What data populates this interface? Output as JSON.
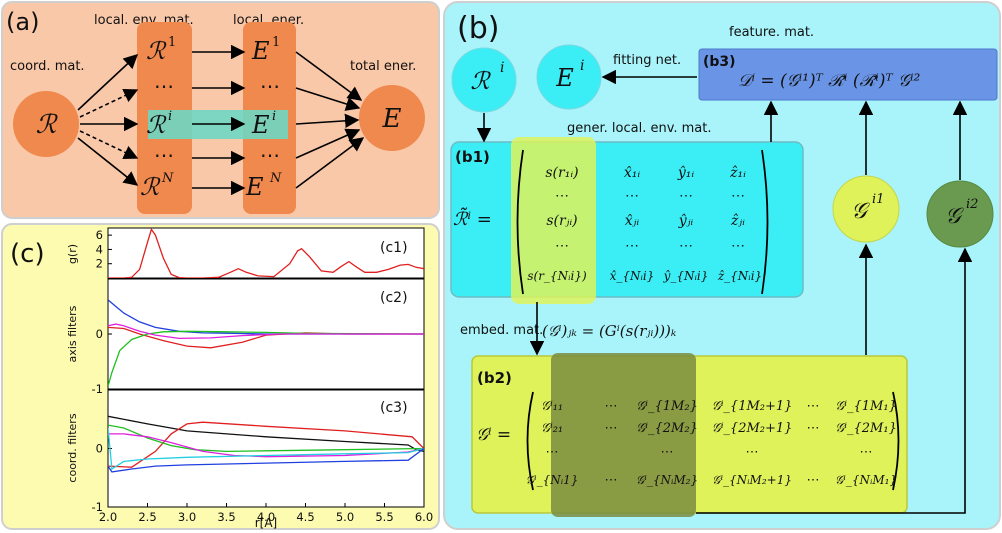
{
  "panel_a": {
    "label": "(a)",
    "col_local_env": "local. env. mat.",
    "col_local_ener": "local. ener.",
    "coord_mat": "coord. mat.",
    "total_ener": "total ener.",
    "node_R": "ℛ",
    "node_E": "E",
    "env_items": [
      "ℛ",
      "⋯",
      "ℛ",
      "⋯",
      "ℛ"
    ],
    "env_sups": [
      "1",
      "",
      "i",
      "",
      "N"
    ],
    "ener_items": [
      "E",
      "⋯",
      "E",
      "⋯",
      "E"
    ],
    "ener_sups": [
      "1",
      "",
      "i",
      "",
      "N"
    ],
    "colors": {
      "bg": "#f9c8a8",
      "node": "#f0894e",
      "highlight": "#6fd7c3"
    }
  },
  "panel_b": {
    "label": "(b)",
    "feature_mat": "feature. mat.",
    "fitting_net": "fitting net.",
    "gener_env": "gener. local. env. mat.",
    "embed_mat": "embed. mat.",
    "embed_eq": "(𝒢ⁱ)ⱼₖ = (Gⁱ(s(rⱼᵢ)))ₖ",
    "b1": "(b1)",
    "b2": "(b2)",
    "b3": "(b3)",
    "b3_eq": "𝒟ⁱ = (𝒢ⁱ¹)ᵀ ℛ̃ⁱ (ℛ̃ⁱ)ᵀ 𝒢ⁱ²",
    "node_R": "ℛ",
    "node_E": "E",
    "node_G1": "𝒢",
    "node_G2": "𝒢",
    "b1_lhs": "ℛ̃ⁱ =",
    "b2_lhs": "𝒢ⁱ =",
    "b1_matrix": [
      [
        "s(r₁ᵢ)",
        "x̂₁ᵢ",
        "ŷ₁ᵢ",
        "ẑ₁ᵢ"
      ],
      [
        "⋯",
        "⋯",
        "⋯",
        "⋯"
      ],
      [
        "s(rⱼᵢ)",
        "x̂ⱼᵢ",
        "ŷⱼᵢ",
        "ẑⱼᵢ"
      ],
      [
        "⋯",
        "⋯",
        "⋯",
        "⋯"
      ],
      [
        "s(r_{Nᵢi})",
        "x̂_{Nᵢi}",
        "ŷ_{Nᵢi}",
        "ẑ_{Nᵢi}"
      ]
    ],
    "b2_matrix": [
      [
        "𝒢ⁱ₁₁",
        "⋯",
        "𝒢ⁱ_{1M₂}",
        "𝒢ⁱ_{1M₂+1}",
        "⋯",
        "𝒢ⁱ_{1M₁}"
      ],
      [
        "𝒢ⁱ₂₁",
        "⋯",
        "𝒢ⁱ_{2M₂}",
        "𝒢ⁱ_{2M₂+1}",
        "⋯",
        "𝒢ⁱ_{2M₁}"
      ],
      [
        "⋯",
        "",
        "⋯",
        "⋯",
        "",
        "⋯"
      ],
      [
        "𝒢ⁱ_{Nᵢ1}",
        "⋯",
        "𝒢ⁱ_{NᵢM₂}",
        "𝒢ⁱ_{NᵢM₂+1}",
        "⋯",
        "𝒢ⁱ_{NᵢM₁}"
      ]
    ],
    "colors": {
      "bg": "#a8f4fa",
      "cyan": "#3bedf5",
      "feature": "#6a95e6",
      "lime": "#dff25a",
      "olive": "#7a8c40",
      "g2": "#6a9a50"
    }
  },
  "panel_c": {
    "label": "(c)",
    "c1": "(c1)",
    "c2": "(c2)",
    "c3": "(c3)",
    "xlabel": "r[A]",
    "c1_ylabel": "g(r)",
    "c2_ylabel": "axis filters",
    "c3_ylabel": "coord. filters",
    "bg": "#fdfbb0"
  },
  "chart_data": [
    {
      "type": "line",
      "title": "(c1)",
      "xlabel": "",
      "ylabel": "g(r)",
      "xlim": [
        2.0,
        6.0
      ],
      "ylim": [
        0,
        7
      ],
      "yticks": [
        2,
        4,
        6
      ],
      "series": [
        {
          "color": "#e02020",
          "x": [
            2.0,
            2.1,
            2.2,
            2.3,
            2.4,
            2.5,
            2.55,
            2.6,
            2.7,
            2.8,
            2.9,
            3.0,
            3.2,
            3.4,
            3.55,
            3.65,
            3.75,
            3.9,
            4.1,
            4.3,
            4.4,
            4.45,
            4.55,
            4.7,
            4.85,
            4.95,
            5.05,
            5.15,
            5.25,
            5.4,
            5.55,
            5.7,
            5.8,
            5.9,
            6.0
          ],
          "y": [
            0,
            0,
            0,
            0.1,
            1.2,
            5.0,
            6.8,
            6.0,
            2.8,
            0.5,
            0.05,
            0,
            0,
            0.1,
            0.8,
            1.3,
            0.8,
            0.3,
            0.2,
            2.0,
            3.8,
            4.1,
            3.0,
            1.0,
            0.8,
            1.6,
            2.3,
            1.5,
            0.8,
            0.8,
            1.2,
            1.8,
            1.9,
            1.5,
            1.3
          ]
        }
      ]
    },
    {
      "type": "line",
      "title": "(c2)",
      "xlabel": "",
      "ylabel": "axis filters",
      "xlim": [
        2.0,
        6.0
      ],
      "ylim": [
        -1,
        1
      ],
      "yticks": [
        -1,
        0
      ],
      "series": [
        {
          "color": "#2040e0",
          "x": [
            2.0,
            2.2,
            2.4,
            2.6,
            2.9,
            3.2,
            3.6,
            4.0,
            5.0,
            6.0
          ],
          "y": [
            0.62,
            0.38,
            0.22,
            0.12,
            0.05,
            0.02,
            0.01,
            0,
            0,
            0
          ]
        },
        {
          "color": "#e02020",
          "x": [
            2.0,
            2.2,
            2.4,
            2.7,
            3.0,
            3.3,
            3.7,
            4.0,
            4.5,
            5.0,
            6.0
          ],
          "y": [
            0.12,
            0.1,
            0.0,
            -0.12,
            -0.22,
            -0.25,
            -0.15,
            -0.02,
            0.02,
            0,
            0
          ]
        },
        {
          "color": "#20c020",
          "x": [
            2.0,
            2.05,
            2.15,
            2.3,
            2.5,
            2.7,
            3.0,
            3.5,
            4.0,
            4.5,
            6.0
          ],
          "y": [
            -0.95,
            -0.7,
            -0.3,
            -0.1,
            0.0,
            0.04,
            0.05,
            0.04,
            0.03,
            0.01,
            0
          ]
        },
        {
          "color": "#e020e0",
          "x": [
            2.0,
            2.1,
            2.2,
            2.4,
            2.6,
            2.9,
            3.3,
            3.7,
            4.2,
            5.0,
            6.0
          ],
          "y": [
            0.15,
            0.18,
            0.15,
            0.05,
            -0.02,
            -0.08,
            -0.07,
            -0.03,
            0.0,
            0.0,
            0
          ]
        }
      ]
    },
    {
      "type": "line",
      "title": "(c3)",
      "xlabel": "r[A]",
      "ylabel": "coord. filters",
      "xlim": [
        2.0,
        6.0
      ],
      "ylim": [
        -1,
        1
      ],
      "xticks": [
        2.0,
        2.5,
        3.0,
        3.5,
        4.0,
        4.5,
        5.0,
        5.5,
        6.0
      ],
      "yticks": [
        -1,
        0
      ],
      "series": [
        {
          "color": "#111111",
          "x": [
            2.0,
            2.5,
            3.0,
            4.0,
            5.0,
            5.8,
            5.9,
            6.0
          ],
          "y": [
            0.55,
            0.42,
            0.3,
            0.2,
            0.12,
            0.06,
            -0.02,
            -0.05
          ]
        },
        {
          "color": "#e02020",
          "x": [
            2.0,
            2.3,
            2.6,
            2.8,
            3.0,
            3.2,
            4.0,
            5.0,
            5.85,
            6.0
          ],
          "y": [
            -0.3,
            -0.32,
            -0.05,
            0.25,
            0.42,
            0.45,
            0.38,
            0.3,
            0.2,
            0.0
          ]
        },
        {
          "color": "#20c020",
          "x": [
            2.0,
            2.2,
            2.5,
            2.8,
            3.1,
            3.5,
            4.0,
            5.0,
            6.0
          ],
          "y": [
            0.4,
            0.35,
            0.18,
            0.05,
            -0.02,
            -0.05,
            -0.04,
            -0.02,
            0.0
          ]
        },
        {
          "color": "#e020e0",
          "x": [
            2.0,
            2.2,
            2.5,
            2.8,
            3.2,
            3.6,
            4.0,
            5.0,
            5.8,
            6.0
          ],
          "y": [
            0.25,
            0.25,
            0.2,
            0.1,
            -0.05,
            -0.12,
            -0.14,
            -0.12,
            -0.06,
            0.0
          ]
        },
        {
          "color": "#20d0e0",
          "x": [
            2.0,
            2.05,
            2.2,
            2.5,
            3.0,
            4.0,
            5.0,
            5.8,
            6.0
          ],
          "y": [
            0.35,
            -0.35,
            -0.22,
            -0.18,
            -0.15,
            -0.12,
            -0.09,
            -0.07,
            0.0
          ]
        },
        {
          "color": "#2040e0",
          "x": [
            2.0,
            2.05,
            2.3,
            2.6,
            3.0,
            4.0,
            5.0,
            5.8,
            6.0
          ],
          "y": [
            -0.3,
            -0.4,
            -0.35,
            -0.3,
            -0.28,
            -0.25,
            -0.22,
            -0.2,
            0.0
          ]
        }
      ]
    }
  ]
}
